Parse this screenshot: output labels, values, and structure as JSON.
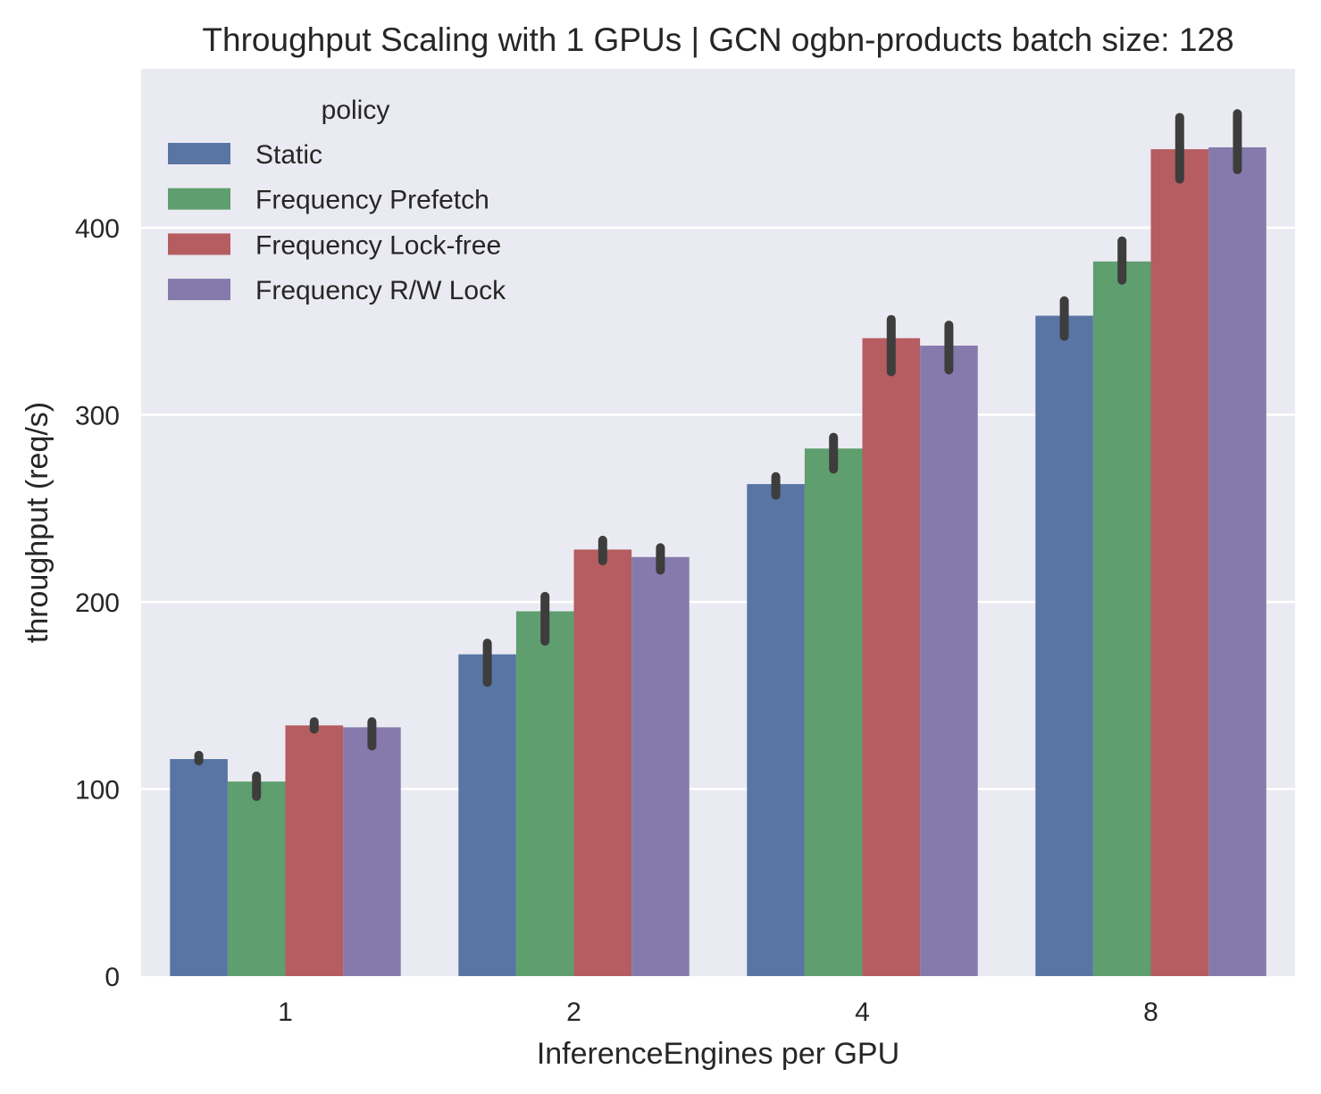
{
  "chart_data": {
    "type": "bar",
    "title": "Throughput Scaling with 1 GPUs | GCN ogbn-products batch size: 128",
    "xlabel": "InferenceEngines per GPU",
    "ylabel": "throughput (req/s)",
    "categories": [
      "1",
      "2",
      "4",
      "8"
    ],
    "ylim": [
      0,
      485
    ],
    "yticks": [
      0,
      100,
      200,
      300,
      400
    ],
    "grid": true,
    "legend": {
      "title": "policy",
      "placement": "top-left"
    },
    "series": [
      {
        "name": "Static",
        "color": "#5875a4",
        "values": [
          116,
          172,
          263,
          353
        ],
        "err_low": [
          115,
          157,
          257,
          342
        ],
        "err_high": [
          118,
          178,
          267,
          361
        ]
      },
      {
        "name": "Frequency Prefetch",
        "color": "#5f9e6e",
        "values": [
          104,
          195,
          282,
          382
        ],
        "err_low": [
          96,
          179,
          271,
          372
        ],
        "err_high": [
          107,
          203,
          288,
          393
        ]
      },
      {
        "name": "Frequency Lock-free",
        "color": "#b55d60",
        "values": [
          134,
          228,
          341,
          442
        ],
        "err_low": [
          132,
          222,
          323,
          426
        ],
        "err_high": [
          136,
          233,
          351,
          459
        ]
      },
      {
        "name": "Frequency R/W Lock",
        "color": "#857aab",
        "values": [
          133,
          224,
          337,
          443
        ],
        "err_low": [
          123,
          217,
          324,
          431
        ],
        "err_high": [
          136,
          229,
          348,
          461
        ]
      }
    ]
  }
}
